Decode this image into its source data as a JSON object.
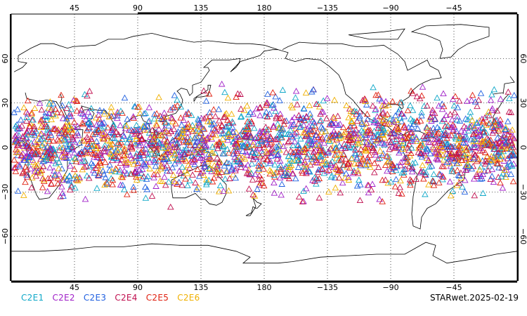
{
  "footer_title": "STARwet.2025-02-19",
  "map": {
    "projection": "cylindrical-equidistant",
    "center_longitude": 180,
    "lon_range": [
      0,
      360
    ],
    "lat_range": [
      -90,
      90
    ],
    "gridlines": "dotted",
    "lon_ticks": [
      {
        "lon": 45,
        "label": "45"
      },
      {
        "lon": 90,
        "label": "90"
      },
      {
        "lon": 135,
        "label": "135"
      },
      {
        "lon": 180,
        "label": "180"
      },
      {
        "lon": 225,
        "label": "−135"
      },
      {
        "lon": 270,
        "label": "−90"
      },
      {
        "lon": 315,
        "label": "−45"
      }
    ],
    "lat_ticks": [
      {
        "lat": 60,
        "label": "60"
      },
      {
        "lat": 30,
        "label": "30"
      },
      {
        "lat": 0,
        "label": "0"
      },
      {
        "lat": -30,
        "label": "−30"
      },
      {
        "lat": -60,
        "label": "−60"
      }
    ],
    "coastline_color": "#000000",
    "marker_shape": "open-triangle",
    "observation_lat_band": [
      -42,
      45
    ]
  },
  "legend": [
    {
      "label": "C2E1",
      "color": "#10a8c8"
    },
    {
      "label": "C2E2",
      "color": "#a020c8"
    },
    {
      "label": "C2E3",
      "color": "#2060e0"
    },
    {
      "label": "C2E4",
      "color": "#c01050"
    },
    {
      "label": "C2E5",
      "color": "#e02010"
    },
    {
      "label": "C2E6",
      "color": "#f0b000"
    }
  ]
}
